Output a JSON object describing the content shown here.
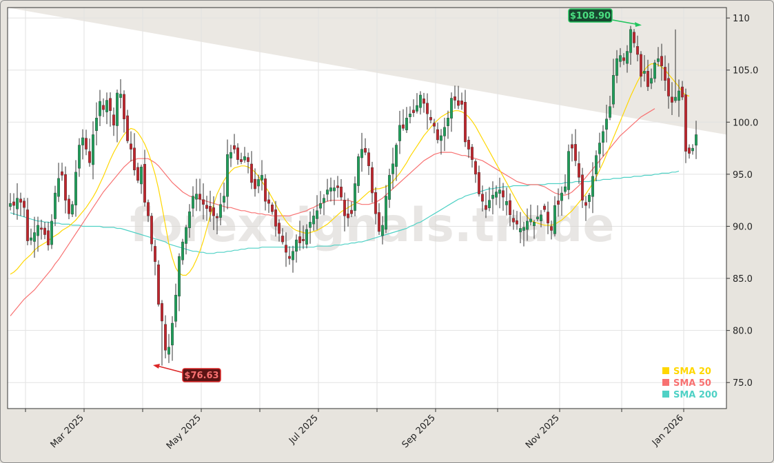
{
  "chart_data": {
    "type": "candlestick",
    "watermark": "forexsignals.trade",
    "x_tick_labels": [
      "Mar 2025",
      "May 2025",
      "Jul 2025",
      "Sep 2025",
      "Nov 2025",
      "Jan 2026"
    ],
    "y_tick_labels": [
      "75.0",
      "80.0",
      "85.0",
      "90.0",
      "95.0",
      "100.0",
      "105.0",
      "110"
    ],
    "ylim": [
      72.5,
      111
    ],
    "y_ticks": [
      75,
      80,
      85,
      90,
      95,
      100,
      105,
      110
    ],
    "grid": true,
    "legend_position": "bottom-right",
    "legend": [
      {
        "name": "SMA 20",
        "color": "#ffd700"
      },
      {
        "name": "SMA 50",
        "color": "#f87171"
      },
      {
        "name": "SMA 200",
        "color": "#4fd1c5"
      }
    ],
    "annotations": {
      "high": {
        "label": "$108.90",
        "value": 108.9,
        "index": 193,
        "color": "#22c55e"
      },
      "low": {
        "label": "$76.63",
        "value": 76.63,
        "index": 44,
        "color": "#dc2626"
      }
    },
    "candle_colors": {
      "up": "#1f9e5a",
      "down": "#c0262d"
    },
    "close": [
      92.2,
      92.0,
      92.7,
      92.3,
      91.8,
      88.6,
      88.9,
      89.4,
      90.1,
      89.7,
      89.2,
      88.2,
      90.5,
      93.2,
      94.6,
      94.9,
      92.5,
      91.2,
      92.1,
      95.2,
      97.8,
      98.5,
      97.4,
      96.1,
      98.8,
      100.4,
      102.0,
      101.2,
      102.1,
      101.1,
      99.7,
      102.8,
      102.7,
      100.3,
      98.2,
      97.4,
      95.4,
      94.4,
      95.7,
      92.3,
      91.0,
      88.3,
      86.6,
      82.5,
      80.9,
      78.1,
      78.4,
      80.7,
      83.4,
      87.1,
      88.5,
      89.9,
      91.4,
      92.9,
      93.1,
      92.6,
      92.1,
      91.7,
      91.4,
      91.0,
      90.8,
      92.1,
      92.9,
      96.9,
      97.1,
      97.4,
      96.4,
      96.2,
      96.7,
      96.2,
      94.2,
      93.6,
      94.5,
      94.9,
      92.4,
      92.2,
      91.4,
      90.0,
      89.3,
      88.5,
      87.5,
      86.9,
      87.6,
      88.7,
      88.4,
      88.6,
      89.7,
      90.4,
      91.0,
      91.5,
      92.2,
      92.7,
      93.5,
      93.7,
      93.7,
      93.7,
      92.8,
      91.0,
      90.8,
      91.2,
      94.1,
      96.7,
      97.4,
      97.1,
      95.8,
      93.2,
      91.2,
      89.5,
      90.1,
      92.9,
      94.9,
      96.0,
      97.8,
      99.7,
      99.4,
      100.4,
      100.8,
      100.9,
      101.6,
      102.6,
      101.8,
      100.8,
      100.2,
      99.6,
      98.3,
      98.7,
      99.5,
      100.4,
      102.3,
      102.1,
      101.6,
      101.7,
      98.1,
      97.4,
      96.4,
      95.0,
      93.1,
      92.4,
      91.6,
      92.5,
      93.0,
      93.3,
      93.5,
      92.8,
      92.4,
      91.1,
      90.4,
      90.2,
      89.8,
      89.9,
      90.5,
      90.7,
      90.4,
      90.9,
      91.1,
      91.6,
      90.3,
      89.6,
      92.0,
      92.1,
      93.2,
      93.8,
      97.2,
      97.5,
      96.3,
      94.7,
      92.5,
      92.0,
      93.0,
      94.8,
      96.8,
      98.0,
      99.1,
      100.3,
      101.5,
      104.5,
      106.1,
      106.4,
      105.9,
      106.8,
      108.9,
      107.6,
      106.5,
      104.4,
      104.9,
      103.4,
      104.2,
      105.7,
      106.1,
      105.4,
      104.0,
      102.5,
      101.9,
      102.4,
      103.0,
      102.4,
      97.2,
      97.0,
      97.5,
      98.8
    ],
    "sma20": [
      85.4,
      85.6,
      85.9,
      86.3,
      86.7,
      87.0,
      87.3,
      87.7,
      88.0,
      88.2,
      88.4,
      88.6,
      88.9,
      89.1,
      89.3,
      89.6,
      89.8,
      90.0,
      90.3,
      90.6,
      91.0,
      91.4,
      91.8,
      92.3,
      92.8,
      93.4,
      94.1,
      94.8,
      95.6,
      96.4,
      97.1,
      97.7,
      98.3,
      98.8,
      99.2,
      99.4,
      99.3,
      99.0,
      98.5,
      97.9,
      97.1,
      96.1,
      95.0,
      93.6,
      91.9,
      90.1,
      88.3,
      87.0,
      86.0,
      85.5,
      85.3,
      85.3,
      85.6,
      86.1,
      86.8,
      87.6,
      88.6,
      89.8,
      91.0,
      92.1,
      93.1,
      93.8,
      94.4,
      94.9,
      95.3,
      95.6,
      95.7,
      95.8,
      95.8,
      95.7,
      95.5,
      95.2,
      94.8,
      94.3,
      93.8,
      93.3,
      92.7,
      92.1,
      91.5,
      91.0,
      90.5,
      90.1,
      89.8,
      89.6,
      89.5,
      89.4,
      89.3,
      89.4,
      89.5,
      89.6,
      89.8,
      90.0,
      90.2,
      90.5,
      90.8,
      91.1,
      91.4,
      91.6,
      91.8,
      92.0,
      92.2,
      92.4,
      92.7,
      93.0,
      93.3,
      93.5,
      93.6,
      93.6,
      93.7,
      93.8,
      94.0,
      94.3,
      94.7,
      95.1,
      95.6,
      96.1,
      96.7,
      97.2,
      97.7,
      98.2,
      98.7,
      99.1,
      99.5,
      99.9,
      100.2,
      100.5,
      100.7,
      100.9,
      101.0,
      101.1,
      101.1,
      101.0,
      100.8,
      100.5,
      100.1,
      99.6,
      99.0,
      98.4,
      97.8,
      97.2,
      96.6,
      96.0,
      95.4,
      94.8,
      94.2,
      93.6,
      93.0,
      92.4,
      91.8,
      91.3,
      90.9,
      90.6,
      90.4,
      90.3,
      90.2,
      90.1,
      90.1,
      90.1,
      90.2,
      90.4,
      90.6,
      90.9,
      91.2,
      91.5,
      91.9,
      92.3,
      92.7,
      93.1,
      93.6,
      94.1,
      94.7,
      95.4,
      96.1,
      96.9,
      97.7,
      98.5,
      99.3,
      100.1,
      100.9,
      101.7,
      102.5,
      103.2,
      103.9,
      104.5,
      105.0,
      105.4,
      105.6,
      105.6,
      105.5,
      105.3,
      105.0,
      104.6,
      104.2,
      103.8,
      103.4,
      102.9,
      102.6,
      102.5
    ],
    "sma50": [
      81.4,
      81.8,
      82.2,
      82.6,
      83.0,
      83.3,
      83.6,
      83.9,
      84.3,
      84.7,
      85.1,
      85.5,
      85.9,
      86.4,
      86.8,
      87.3,
      87.8,
      88.3,
      88.8,
      89.3,
      89.8,
      90.3,
      90.8,
      91.3,
      91.8,
      92.3,
      92.8,
      93.3,
      93.7,
      94.1,
      94.5,
      94.9,
      95.3,
      95.7,
      96.0,
      96.3,
      96.4,
      96.5,
      96.5,
      96.5,
      96.5,
      96.3,
      96.1,
      95.8,
      95.4,
      95.0,
      94.6,
      94.2,
      93.9,
      93.6,
      93.3,
      93.1,
      92.9,
      92.8,
      92.7,
      92.6,
      92.5,
      92.4,
      92.3,
      92.2,
      92.1,
      92.0,
      91.9,
      91.8,
      91.8,
      91.7,
      91.6,
      91.5,
      91.5,
      91.4,
      91.3,
      91.3,
      91.2,
      91.2,
      91.1,
      91.1,
      91.0,
      91.0,
      91.0,
      91.0,
      91.0,
      91.0,
      91.1,
      91.2,
      91.3,
      91.4,
      91.5,
      91.7,
      91.8,
      92.0,
      92.1,
      92.3,
      92.4,
      92.5,
      92.5,
      92.5,
      92.5,
      92.5,
      92.5,
      92.4,
      92.3,
      92.2,
      92.1,
      92.1,
      92.1,
      92.2,
      92.3,
      92.5,
      92.7,
      93.0,
      93.3,
      93.6,
      93.9,
      94.2,
      94.5,
      94.8,
      95.1,
      95.4,
      95.7,
      96.0,
      96.3,
      96.5,
      96.7,
      96.9,
      97.0,
      97.1,
      97.1,
      97.1,
      97.1,
      97.0,
      96.9,
      96.8,
      96.8,
      96.7,
      96.6,
      96.5,
      96.4,
      96.3,
      96.1,
      95.9,
      95.7,
      95.5,
      95.3,
      95.1,
      94.9,
      94.7,
      94.5,
      94.3,
      94.2,
      94.1,
      94.0,
      94.0,
      94.0,
      94.0,
      93.9,
      93.8,
      93.6,
      93.4,
      93.2,
      93.1,
      93.0,
      93.0,
      93.1,
      93.3,
      93.6,
      93.9,
      94.3,
      94.7,
      95.1,
      95.5,
      95.9,
      96.3,
      96.7,
      97.1,
      97.5,
      97.9,
      98.3,
      98.7,
      99.0,
      99.3,
      99.6,
      99.9,
      100.2,
      100.5,
      100.7,
      100.9,
      101.1,
      101.3
    ],
    "sma200": [
      91.3,
      91.2,
      91.1,
      91.0,
      90.9,
      90.8,
      90.7,
      90.6,
      90.5,
      90.5,
      90.4,
      90.4,
      90.3,
      90.3,
      90.3,
      90.2,
      90.2,
      90.2,
      90.1,
      90.1,
      90.1,
      90.0,
      90.0,
      90.0,
      90.0,
      90.0,
      90.0,
      89.9,
      89.9,
      89.9,
      89.9,
      89.8,
      89.8,
      89.7,
      89.6,
      89.5,
      89.4,
      89.3,
      89.2,
      89.1,
      89.0,
      88.9,
      88.8,
      88.7,
      88.6,
      88.5,
      88.3,
      88.2,
      88.1,
      88.0,
      87.9,
      87.8,
      87.7,
      87.6,
      87.6,
      87.5,
      87.5,
      87.4,
      87.4,
      87.4,
      87.5,
      87.5,
      87.5,
      87.6,
      87.6,
      87.7,
      87.7,
      87.8,
      87.8,
      87.9,
      87.9,
      87.9,
      87.9,
      88.0,
      88.0,
      88.0,
      88.0,
      88.0,
      88.0,
      88.0,
      88.0,
      88.0,
      88.0,
      88.0,
      88.0,
      88.0,
      88.0,
      88.0,
      88.0,
      88.1,
      88.1,
      88.1,
      88.1,
      88.1,
      88.2,
      88.2,
      88.2,
      88.3,
      88.3,
      88.4,
      88.4,
      88.5,
      88.5,
      88.6,
      88.7,
      88.8,
      88.9,
      89.0,
      89.1,
      89.2,
      89.3,
      89.4,
      89.5,
      89.6,
      89.7,
      89.8,
      90.0,
      90.1,
      90.3,
      90.4,
      90.6,
      90.8,
      91.0,
      91.2,
      91.4,
      91.6,
      91.8,
      92.0,
      92.2,
      92.4,
      92.6,
      92.7,
      92.9,
      93.0,
      93.1,
      93.2,
      93.3,
      93.4,
      93.5,
      93.6,
      93.6,
      93.7,
      93.7,
      93.8,
      93.8,
      93.8,
      93.9,
      93.9,
      93.9,
      93.9,
      93.9,
      94.0,
      94.0,
      94.0,
      94.0,
      94.0,
      94.1,
      94.1,
      94.1,
      94.1,
      94.1,
      94.2,
      94.2,
      94.2,
      94.3,
      94.3,
      94.3,
      94.3,
      94.3,
      94.4,
      94.4,
      94.4,
      94.5,
      94.5,
      94.5,
      94.6,
      94.6,
      94.6,
      94.7,
      94.7,
      94.7,
      94.8,
      94.8,
      94.8,
      94.9,
      94.9,
      94.9,
      95.0,
      95.0,
      95.1,
      95.1,
      95.1,
      95.2,
      95.2,
      95.3
    ]
  }
}
